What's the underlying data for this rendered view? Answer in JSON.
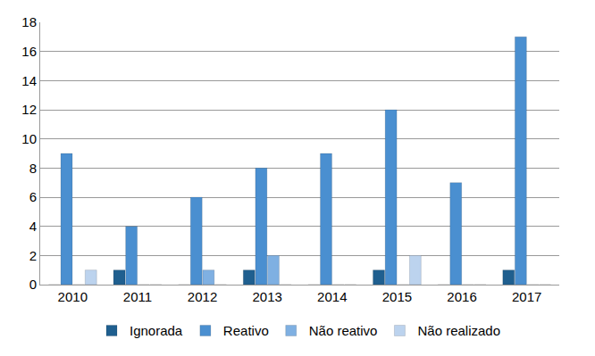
{
  "chart_data": {
    "type": "bar",
    "categories": [
      "2010",
      "2011",
      "2012",
      "2013",
      "2014",
      "2015",
      "2016",
      "2017"
    ],
    "series": [
      {
        "name": "Ignorada",
        "color": "#1f5f8f",
        "values": [
          0,
          1,
          0,
          1,
          0,
          1,
          0,
          1
        ]
      },
      {
        "name": "Reativo",
        "color": "#4a8fd0",
        "values": [
          9,
          4,
          6,
          8,
          9,
          12,
          7,
          17
        ]
      },
      {
        "name": "Não reativo",
        "color": "#7fb0e2",
        "values": [
          0,
          0,
          1,
          2,
          0,
          0,
          0,
          0
        ]
      },
      {
        "name": "Não realizado",
        "color": "#bcd3ee",
        "values": [
          1,
          0,
          0,
          0,
          0,
          2,
          0,
          0
        ]
      }
    ],
    "ylim": [
      0,
      18
    ],
    "yticks": [
      0,
      2,
      4,
      6,
      8,
      10,
      12,
      14,
      16,
      18
    ],
    "grid": true,
    "legend": "bottom"
  }
}
